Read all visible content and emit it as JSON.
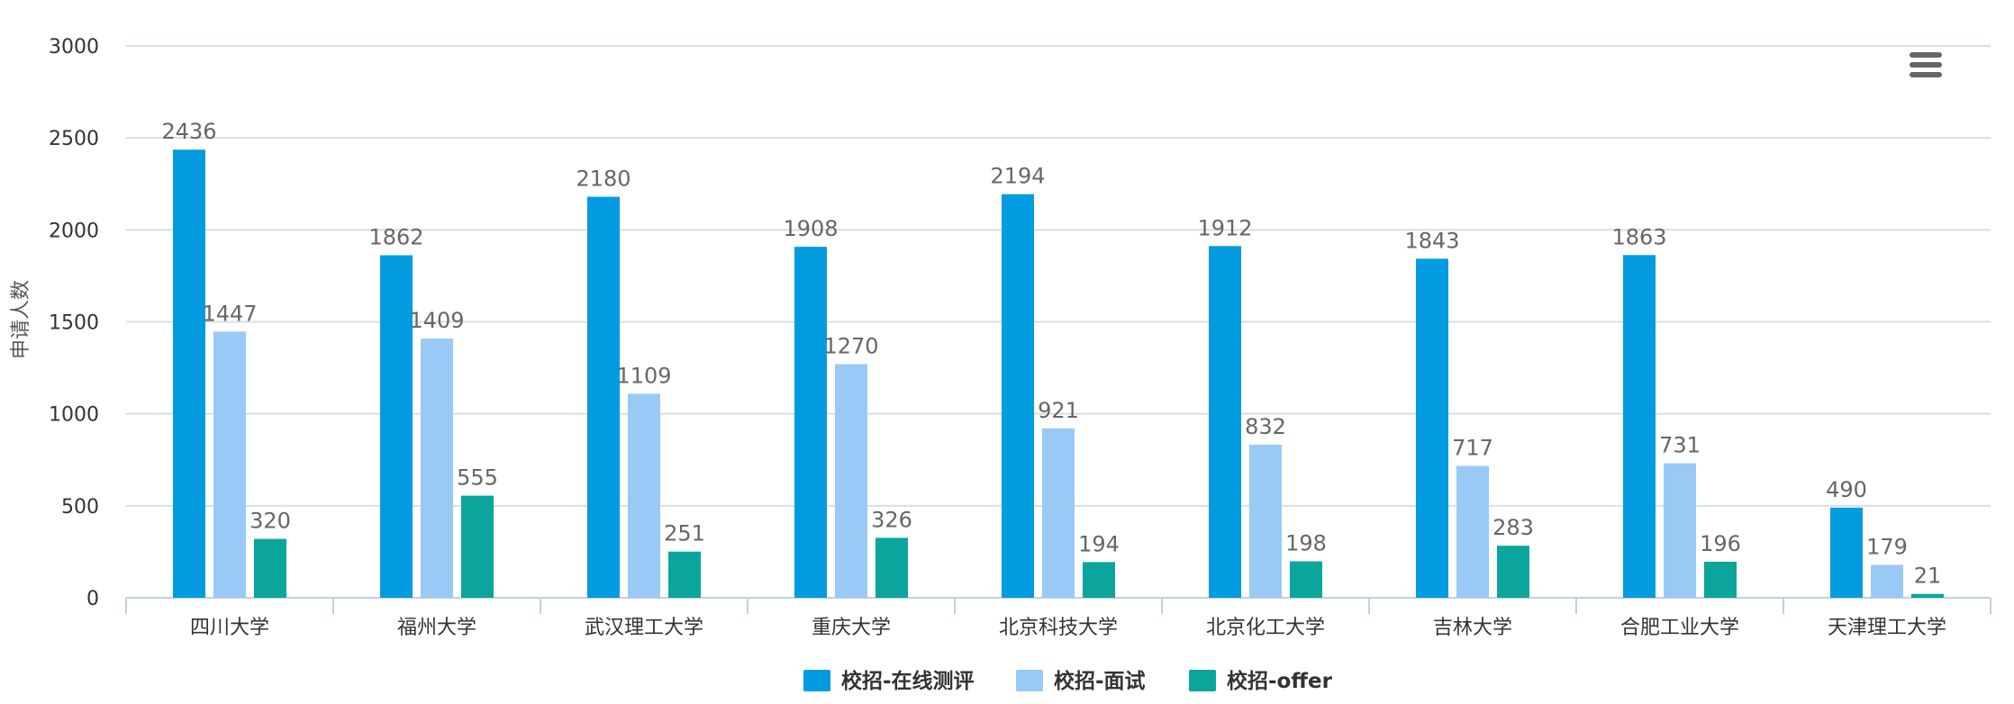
{
  "chart_data": {
    "type": "bar",
    "title": "",
    "xlabel": "",
    "ylabel": "申请人数",
    "ylim": [
      0,
      3000
    ],
    "yticks": [
      0,
      500,
      1000,
      1500,
      2000,
      2500,
      3000
    ],
    "grid": true,
    "legend_position": "bottom-center",
    "categories": [
      "四川大学",
      "福州大学",
      "武汉理工大学",
      "重庆大学",
      "北京科技大学",
      "北京化工大学",
      "吉林大学",
      "合肥工业大学",
      "天津理工大学"
    ],
    "series": [
      {
        "name": "校招-在线测评",
        "color": "#039be0",
        "values": [
          2436,
          1862,
          2180,
          1908,
          2194,
          1912,
          1843,
          1863,
          490
        ]
      },
      {
        "name": "校招-面试",
        "color": "#99caf6",
        "values": [
          1447,
          1409,
          1109,
          1270,
          921,
          832,
          717,
          731,
          179
        ]
      },
      {
        "name": "校招-offer",
        "color": "#0ca59d",
        "values": [
          320,
          555,
          251,
          326,
          194,
          198,
          283,
          196,
          21
        ]
      }
    ]
  },
  "toolbar": {
    "menu_icon": "hamburger-menu-icon"
  }
}
